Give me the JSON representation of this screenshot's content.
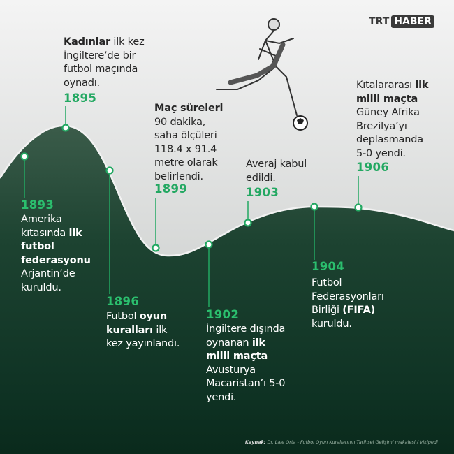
{
  "brand": {
    "logo_left": "TRT",
    "logo_right": "HABER"
  },
  "colors": {
    "accent": "#23a862",
    "top_background": "#e6e7e7",
    "bottom_background": "#163a2a",
    "curve": "#f2f2f2"
  },
  "illustration": {
    "icon": "soccer-player-kicking-ball-icon"
  },
  "timeline": [
    {
      "year": "1893",
      "tone": "light",
      "lines": [
        [
          {
            "t": "Amerika"
          }
        ],
        [
          {
            "t": "kıtasında "
          },
          {
            "t": "ilk",
            "b": 1
          }
        ],
        [
          {
            "t": "futbol",
            "b": 1
          }
        ],
        [
          {
            "t": "federasyonu",
            "b": 1
          }
        ],
        [
          {
            "t": "Arjantin’de"
          }
        ],
        [
          {
            "t": "kuruldu."
          }
        ]
      ]
    },
    {
      "year": "1895",
      "tone": "dark",
      "lines": [
        [
          {
            "t": "Kadınlar",
            "b": 1
          },
          {
            "t": " ilk kez"
          }
        ],
        [
          {
            "t": "İngiltere’de bir"
          }
        ],
        [
          {
            "t": "futbol maçında"
          }
        ],
        [
          {
            "t": "oynadı."
          }
        ]
      ]
    },
    {
      "year": "1896",
      "tone": "light",
      "lines": [
        [
          {
            "t": "Futbol "
          },
          {
            "t": "oyun",
            "b": 1
          }
        ],
        [
          {
            "t": "kuralları",
            "b": 1
          },
          {
            "t": " ilk"
          }
        ],
        [
          {
            "t": "kez yayınlandı."
          }
        ]
      ]
    },
    {
      "year": "1899",
      "tone": "dark",
      "lines": [
        [
          {
            "t": "Maç süreleri",
            "b": 1
          }
        ],
        [
          {
            "t": "90 dakika,"
          }
        ],
        [
          {
            "t": "saha ölçüleri"
          }
        ],
        [
          {
            "t": "118.4 x 91.4"
          }
        ],
        [
          {
            "t": "metre olarak"
          }
        ],
        [
          {
            "t": "belirlendi."
          }
        ]
      ]
    },
    {
      "year": "1902",
      "tone": "light",
      "lines": [
        [
          {
            "t": "İngiltere dışında"
          }
        ],
        [
          {
            "t": "oynanan "
          },
          {
            "t": "ilk",
            "b": 1
          }
        ],
        [
          {
            "t": "milli maçta",
            "b": 1
          }
        ],
        [
          {
            "t": "Avusturya"
          }
        ],
        [
          {
            "t": "Macaristan’ı 5-0"
          }
        ],
        [
          {
            "t": "yendi."
          }
        ]
      ]
    },
    {
      "year": "1903",
      "tone": "dark",
      "lines": [
        [
          {
            "t": "Averaj kabul"
          }
        ],
        [
          {
            "t": "edildi."
          }
        ]
      ]
    },
    {
      "year": "1904",
      "tone": "light",
      "lines": [
        [
          {
            "t": "Futbol"
          }
        ],
        [
          {
            "t": "Federasyonları"
          }
        ],
        [
          {
            "t": "Birliği "
          },
          {
            "t": "(FIFA)",
            "b": 1
          }
        ],
        [
          {
            "t": "kuruldu."
          }
        ]
      ]
    },
    {
      "year": "1906",
      "tone": "dark",
      "lines": [
        [
          {
            "t": "Kıtalararası "
          },
          {
            "t": "ilk",
            "b": 1
          }
        ],
        [
          {
            "t": "milli maçta",
            "b": 1
          }
        ],
        [
          {
            "t": "Güney Afrika"
          }
        ],
        [
          {
            "t": "Brezilya’yı"
          }
        ],
        [
          {
            "t": "deplasmanda"
          }
        ],
        [
          {
            "t": "5-0 yendi."
          }
        ]
      ]
    }
  ],
  "source": {
    "label": "Kaynak:",
    "text": "Dr. Lale Orta - Futbol Oyun Kurallarının Tarihsel Gelişimi makalesi / Vikipedi"
  }
}
